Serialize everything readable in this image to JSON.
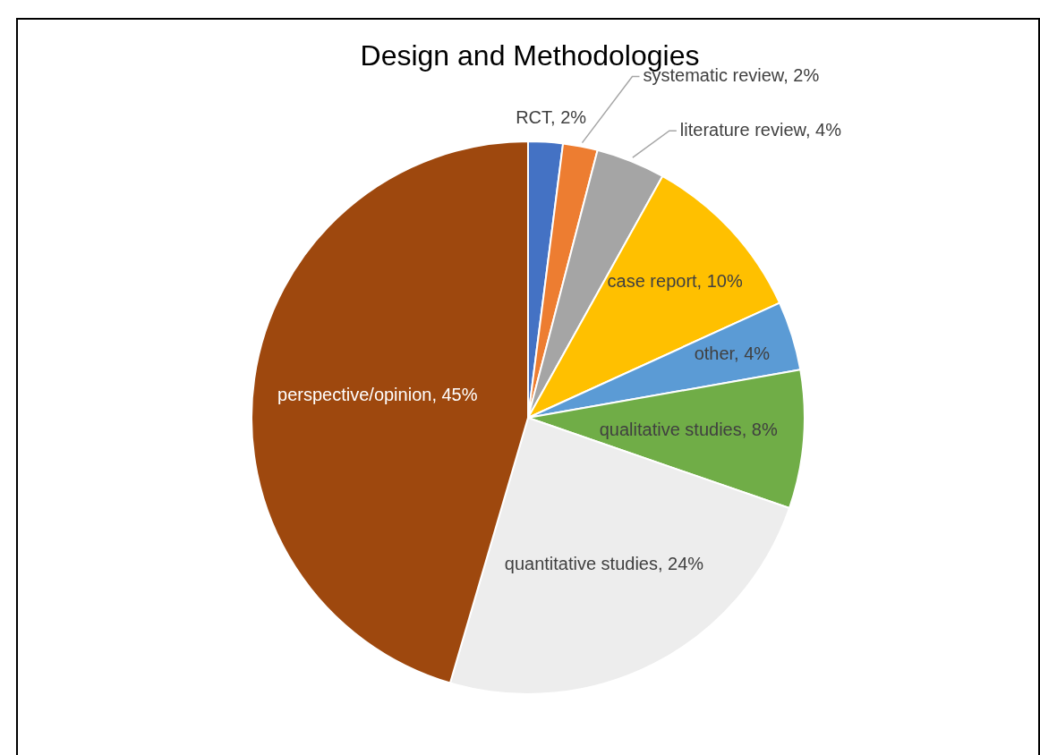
{
  "chart_data": {
    "type": "pie",
    "title": "Design and Methodologies",
    "categories": [
      "RCT",
      "systematic review",
      "literature review",
      "case report",
      "other",
      "qualitative studies",
      "quantitative studies",
      "perspective/opinion"
    ],
    "values": [
      2,
      2,
      4,
      10,
      4,
      8,
      24,
      45
    ],
    "value_labels": [
      "2%",
      "2%",
      "4%",
      "10%",
      "4%",
      "8%",
      "24%",
      "45%"
    ],
    "colors": [
      "#4472c4",
      "#ed7d31",
      "#a5a5a5",
      "#ffc000",
      "#5b9bd5",
      "#70ad47",
      "#ededed",
      "#9e480e"
    ],
    "legend": false
  }
}
